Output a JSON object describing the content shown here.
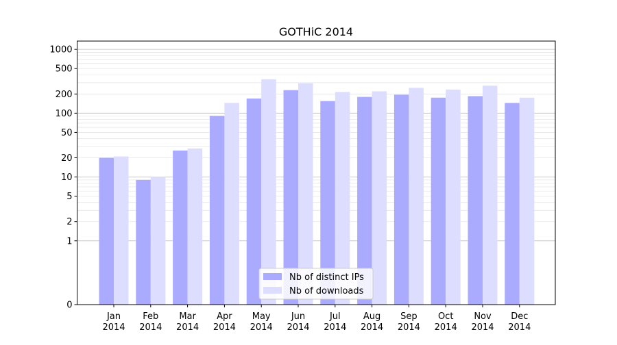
{
  "chart_data": {
    "type": "bar",
    "title": "GOTHiC 2014",
    "xlabel": "",
    "ylabel": "",
    "y_scale": "symlog",
    "y_ticks": [
      {
        "value": 0,
        "label": "0"
      },
      {
        "value": 1,
        "label": "1"
      },
      {
        "value": 2,
        "label": "2"
      },
      {
        "value": 5,
        "label": "5"
      },
      {
        "value": 10,
        "label": "10"
      },
      {
        "value": 20,
        "label": "20"
      },
      {
        "value": 50,
        "label": "50"
      },
      {
        "value": 100,
        "label": "100"
      },
      {
        "value": 200,
        "label": "200"
      },
      {
        "value": 500,
        "label": "500"
      },
      {
        "value": 1000,
        "label": "1000"
      }
    ],
    "categories": [
      {
        "month": "Jan",
        "year": "2014"
      },
      {
        "month": "Feb",
        "year": "2014"
      },
      {
        "month": "Mar",
        "year": "2014"
      },
      {
        "month": "Apr",
        "year": "2014"
      },
      {
        "month": "May",
        "year": "2014"
      },
      {
        "month": "Jun",
        "year": "2014"
      },
      {
        "month": "Jul",
        "year": "2014"
      },
      {
        "month": "Aug",
        "year": "2014"
      },
      {
        "month": "Sep",
        "year": "2014"
      },
      {
        "month": "Oct",
        "year": "2014"
      },
      {
        "month": "Nov",
        "year": "2014"
      },
      {
        "month": "Dec",
        "year": "2014"
      }
    ],
    "series": [
      {
        "name": "Nb of distinct IPs",
        "color": "#aaaaff",
        "values": [
          20,
          9,
          26,
          91,
          170,
          230,
          155,
          180,
          195,
          175,
          185,
          145
        ]
      },
      {
        "name": "Nb of downloads",
        "color": "#ddddff",
        "values": [
          21,
          10,
          28,
          145,
          340,
          295,
          215,
          220,
          250,
          235,
          270,
          175
        ]
      }
    ],
    "grid": true,
    "legend_position": "bottom-center"
  }
}
